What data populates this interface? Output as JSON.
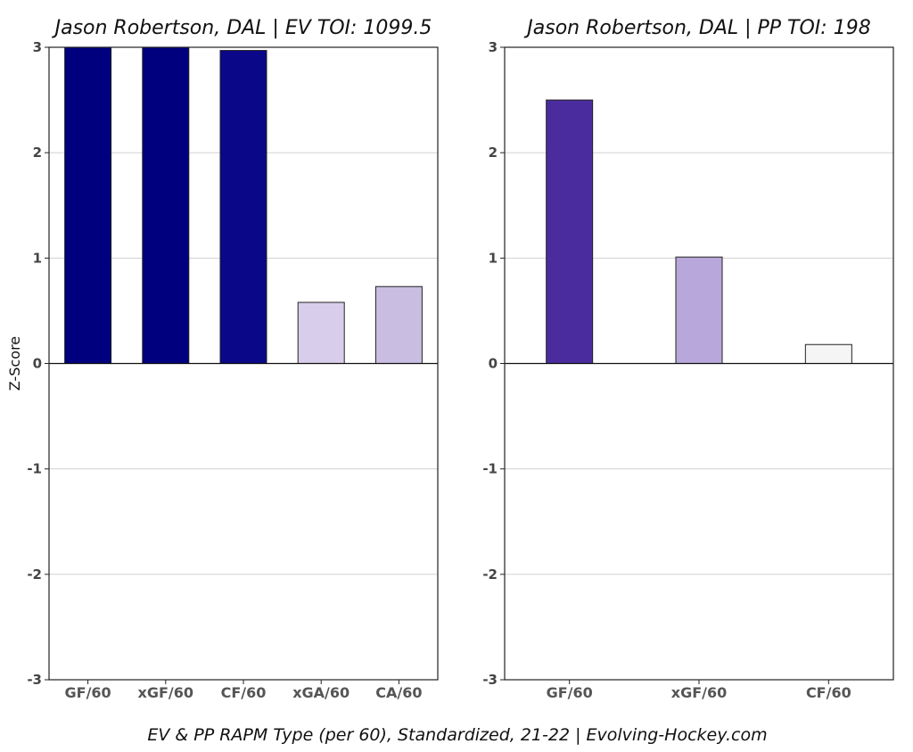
{
  "chart_data": [
    {
      "type": "bar",
      "title": "Jason Robertson, DAL  |  EV TOI: 1099.5",
      "ylabel": "Z-Score",
      "xlabel": "",
      "ylim": [
        -3,
        3
      ],
      "yticks": [
        3,
        2,
        1,
        0,
        -1,
        -2,
        -3
      ],
      "grid": true,
      "categories": [
        "GF/60",
        "xGF/60",
        "CF/60",
        "xGA/60",
        "CA/60"
      ],
      "values": [
        3.0,
        3.0,
        2.97,
        0.58,
        0.73
      ],
      "colors": [
        "#00007f",
        "#00007f",
        "#0a0788",
        "#d8cdea",
        "#c9bde2"
      ]
    },
    {
      "type": "bar",
      "title": "Jason Robertson, DAL  |  PP TOI: 198",
      "ylabel": "",
      "xlabel": "",
      "ylim": [
        -3,
        3
      ],
      "yticks": [
        3,
        2,
        1,
        0,
        -1,
        -2,
        -3
      ],
      "grid": true,
      "categories": [
        "GF/60",
        "xGF/60",
        "CF/60"
      ],
      "values": [
        2.5,
        1.01,
        0.18
      ],
      "colors": [
        "#4a2c9e",
        "#b8a7da",
        "#f5f5f5"
      ]
    }
  ],
  "caption": "EV & PP RAPM Type (per 60), Standardized, 21-22    |    Evolving-Hockey.com"
}
